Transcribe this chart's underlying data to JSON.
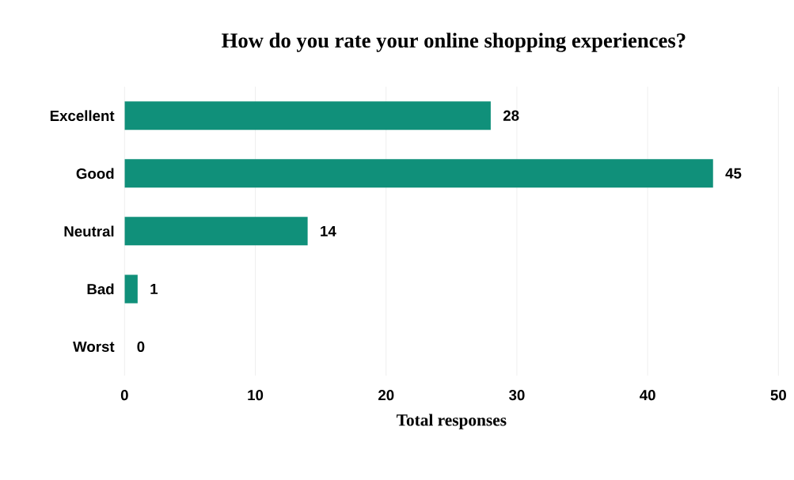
{
  "chart_data": {
    "type": "bar",
    "orientation": "horizontal",
    "title": "How do you rate your online shopping experiences?",
    "xlabel": "Total responses",
    "categories": [
      "Excellent",
      "Good",
      "Neutral",
      "Bad",
      "Worst"
    ],
    "values": [
      28,
      45,
      14,
      1,
      0
    ],
    "color": "#10907a",
    "xlim": [
      0,
      50
    ],
    "xticks": [
      0,
      10,
      20,
      30,
      40,
      50
    ],
    "grid": "x",
    "data_labels": true
  }
}
